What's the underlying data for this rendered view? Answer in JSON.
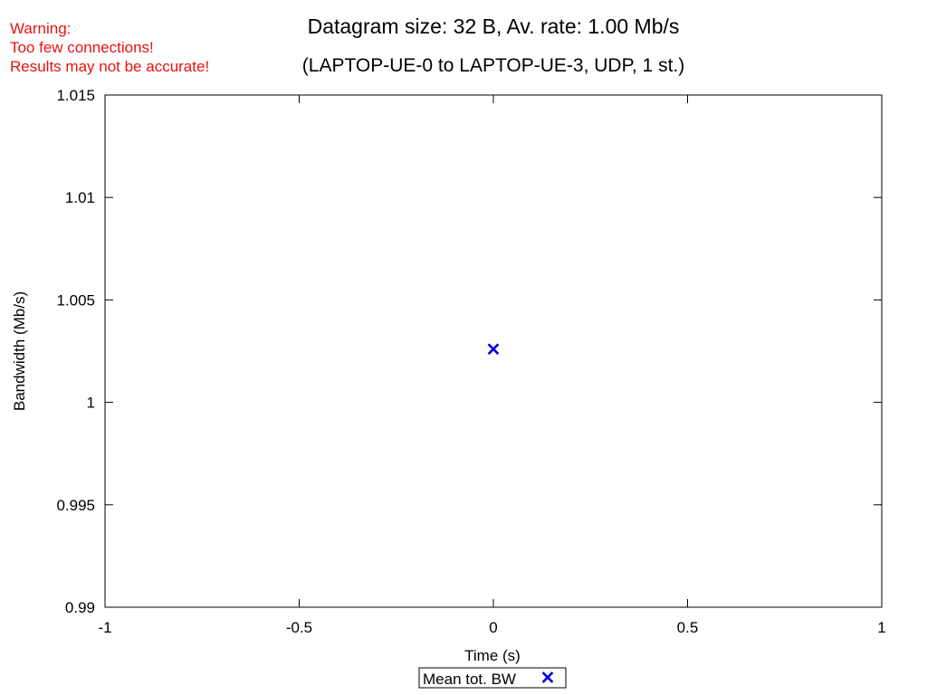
{
  "warning": {
    "line1": "Warning:",
    "line2": "Too few connections!",
    "line3": "Results may not be accurate!",
    "color": "#e8130f"
  },
  "chart_data": {
    "type": "scatter",
    "title": "Datagram size: 32 B, Av. rate: 1.00 Mb/s",
    "subtitle": "(LAPTOP-UE-0 to LAPTOP-UE-3, UDP, 1 st.)",
    "xlabel": "Time (s)",
    "ylabel": "Bandwidth (Mb/s)",
    "xlim": [
      -1,
      1
    ],
    "ylim": [
      0.99,
      1.015
    ],
    "xticks": [
      -1,
      -0.5,
      0,
      0.5,
      1
    ],
    "xtick_labels": [
      "-1",
      "-0.5",
      "0",
      "0.5",
      "1"
    ],
    "yticks": [
      0.99,
      0.995,
      1,
      1.005,
      1.01,
      1.015
    ],
    "ytick_labels": [
      "0.99",
      "0.995",
      "1",
      "1.005",
      "1.01",
      "1.015"
    ],
    "grid": false,
    "legend_position": "bottom-center",
    "series": [
      {
        "name": "Mean tot. BW",
        "marker": "x",
        "color": "#0000e0",
        "points": [
          {
            "x": 0,
            "y": 1.0026
          }
        ]
      }
    ]
  }
}
